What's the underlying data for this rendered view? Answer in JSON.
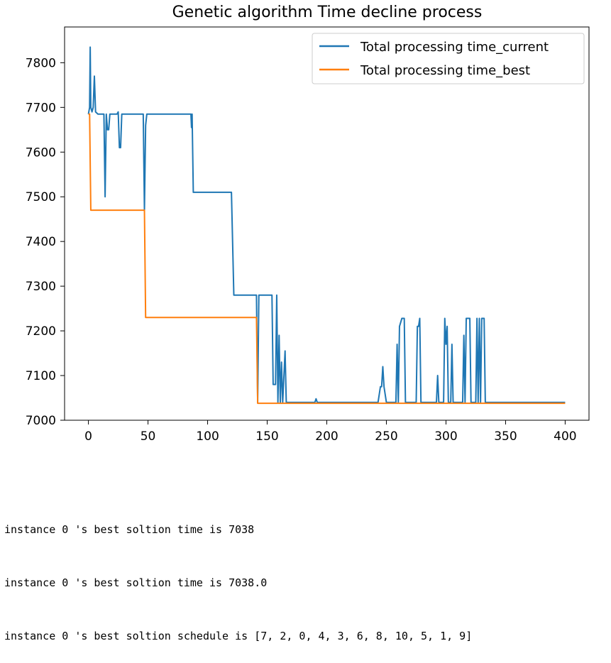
{
  "chart_data": {
    "type": "line",
    "title": "Genetic algorithm Time decline process",
    "xlabel": "",
    "ylabel": "",
    "xlim": [
      -20,
      420
    ],
    "ylim": [
      7000,
      7880
    ],
    "xticks": [
      0,
      50,
      100,
      150,
      200,
      250,
      300,
      350,
      400
    ],
    "yticks": [
      7000,
      7100,
      7200,
      7300,
      7400,
      7500,
      7600,
      7700,
      7800
    ],
    "grid": false,
    "legend_position": "top-right",
    "series": [
      {
        "name": "Total processing time_current",
        "color": "#1f77b4",
        "points": [
          [
            0,
            7685
          ],
          [
            1,
            7700
          ],
          [
            1.5,
            7835
          ],
          [
            2,
            7700
          ],
          [
            3,
            7690
          ],
          [
            4,
            7700
          ],
          [
            5,
            7770
          ],
          [
            6,
            7690
          ],
          [
            8,
            7685
          ],
          [
            13,
            7685
          ],
          [
            14,
            7500
          ],
          [
            15,
            7685
          ],
          [
            16,
            7650
          ],
          [
            17,
            7650
          ],
          [
            18,
            7685
          ],
          [
            24,
            7685
          ],
          [
            25,
            7690
          ],
          [
            26,
            7610
          ],
          [
            27,
            7610
          ],
          [
            28,
            7685
          ],
          [
            46,
            7685
          ],
          [
            47,
            7470
          ],
          [
            48,
            7660
          ],
          [
            49,
            7685
          ],
          [
            86,
            7685
          ],
          [
            86.5,
            7655
          ],
          [
            87,
            7685
          ],
          [
            88,
            7510
          ],
          [
            120,
            7510
          ],
          [
            122,
            7280
          ],
          [
            140,
            7280
          ],
          [
            141,
            7280
          ],
          [
            142,
            7040
          ],
          [
            143,
            7280
          ],
          [
            154,
            7280
          ],
          [
            155,
            7080
          ],
          [
            157,
            7080
          ],
          [
            158,
            7280
          ],
          [
            159,
            7040
          ],
          [
            160,
            7190
          ],
          [
            161,
            7040
          ],
          [
            162,
            7130
          ],
          [
            163,
            7040
          ],
          [
            165,
            7155
          ],
          [
            166,
            7040
          ],
          [
            190,
            7040
          ],
          [
            191,
            7048
          ],
          [
            192,
            7040
          ],
          [
            243,
            7040
          ],
          [
            245,
            7075
          ],
          [
            246,
            7075
          ],
          [
            247,
            7120
          ],
          [
            248,
            7075
          ],
          [
            250,
            7040
          ],
          [
            258,
            7040
          ],
          [
            259,
            7170
          ],
          [
            260,
            7040
          ],
          [
            261,
            7210
          ],
          [
            263,
            7228
          ],
          [
            265,
            7228
          ],
          [
            266,
            7040
          ],
          [
            275,
            7040
          ],
          [
            276,
            7210
          ],
          [
            277,
            7210
          ],
          [
            278,
            7228
          ],
          [
            279,
            7040
          ],
          [
            292,
            7040
          ],
          [
            293,
            7100
          ],
          [
            294,
            7040
          ],
          [
            298,
            7040
          ],
          [
            299,
            7228
          ],
          [
            300,
            7170
          ],
          [
            301,
            7210
          ],
          [
            302,
            7040
          ],
          [
            304,
            7040
          ],
          [
            305,
            7170
          ],
          [
            306,
            7040
          ],
          [
            314,
            7040
          ],
          [
            315,
            7190
          ],
          [
            316,
            7040
          ],
          [
            317,
            7228
          ],
          [
            320,
            7228
          ],
          [
            321,
            7040
          ],
          [
            325,
            7040
          ],
          [
            326,
            7228
          ],
          [
            327,
            7040
          ],
          [
            328,
            7228
          ],
          [
            329,
            7040
          ],
          [
            330,
            7228
          ],
          [
            332,
            7228
          ],
          [
            333,
            7040
          ],
          [
            400,
            7040
          ]
        ]
      },
      {
        "name": "Total processing time_best",
        "color": "#ff7f0e",
        "points": [
          [
            0,
            7685
          ],
          [
            1,
            7685
          ],
          [
            2,
            7470
          ],
          [
            47,
            7470
          ],
          [
            48,
            7230
          ],
          [
            141,
            7230
          ],
          [
            142,
            7038
          ],
          [
            400,
            7038
          ]
        ]
      }
    ]
  },
  "console": [
    "instance 0 's best soltion time is 7038",
    "instance 0 's best soltion time is 7038.0",
    "instance 0 's best soltion schedule is [7, 2, 0, 4, 3, 6, 8, 10, 5, 1, 9]"
  ]
}
